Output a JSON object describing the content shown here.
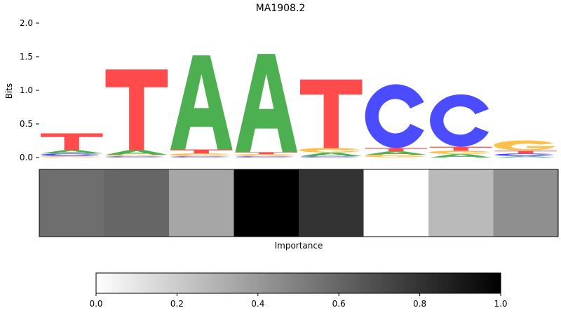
{
  "chart_data": [
    {
      "type": "sequence-logo",
      "title": "MA1908.2",
      "ylabel": "Bits",
      "ylim": [
        0,
        2.0
      ],
      "yticks": [
        0.0,
        0.5,
        1.0,
        1.5,
        2.0
      ],
      "ytick_labels": [
        "0.0",
        "0.5",
        "1.0",
        "1.5",
        "2.0"
      ],
      "alphabet": [
        "A",
        "C",
        "G",
        "T"
      ],
      "colors": {
        "A": "#4caf50",
        "C": "#4b4bff",
        "G": "#ffc04b",
        "T": "#ff4b4b"
      },
      "positions": [
        {
          "A": 0.05,
          "C": 0.04,
          "G": 0.02,
          "T": 0.25
        },
        {
          "A": 0.07,
          "C": 0.02,
          "G": 0.02,
          "T": 1.2
        },
        {
          "A": 1.4,
          "C": 0.02,
          "G": 0.04,
          "T": 0.06
        },
        {
          "A": 1.46,
          "C": 0.02,
          "G": 0.03,
          "T": 0.03
        },
        {
          "A": 0.05,
          "C": 0.02,
          "G": 0.07,
          "T": 1.02
        },
        {
          "A": 0.05,
          "C": 0.95,
          "G": 0.04,
          "T": 0.05
        },
        {
          "A": 0.05,
          "C": 0.78,
          "G": 0.05,
          "T": 0.06
        },
        {
          "A": 0.02,
          "C": 0.04,
          "G": 0.15,
          "T": 0.04
        }
      ]
    },
    {
      "type": "heatmap",
      "xlabel": "Importance",
      "colormap": "Greys",
      "values": [
        0.57,
        0.6,
        0.35,
        1.0,
        0.8,
        0.0,
        0.27,
        0.44
      ]
    },
    {
      "type": "colorbar",
      "colormap": "Greys",
      "range": [
        0.0,
        1.0
      ],
      "ticks": [
        0.0,
        0.2,
        0.4,
        0.6,
        0.8,
        1.0
      ],
      "tick_labels": [
        "0.0",
        "0.2",
        "0.4",
        "0.6",
        "0.8",
        "1.0"
      ]
    }
  ]
}
